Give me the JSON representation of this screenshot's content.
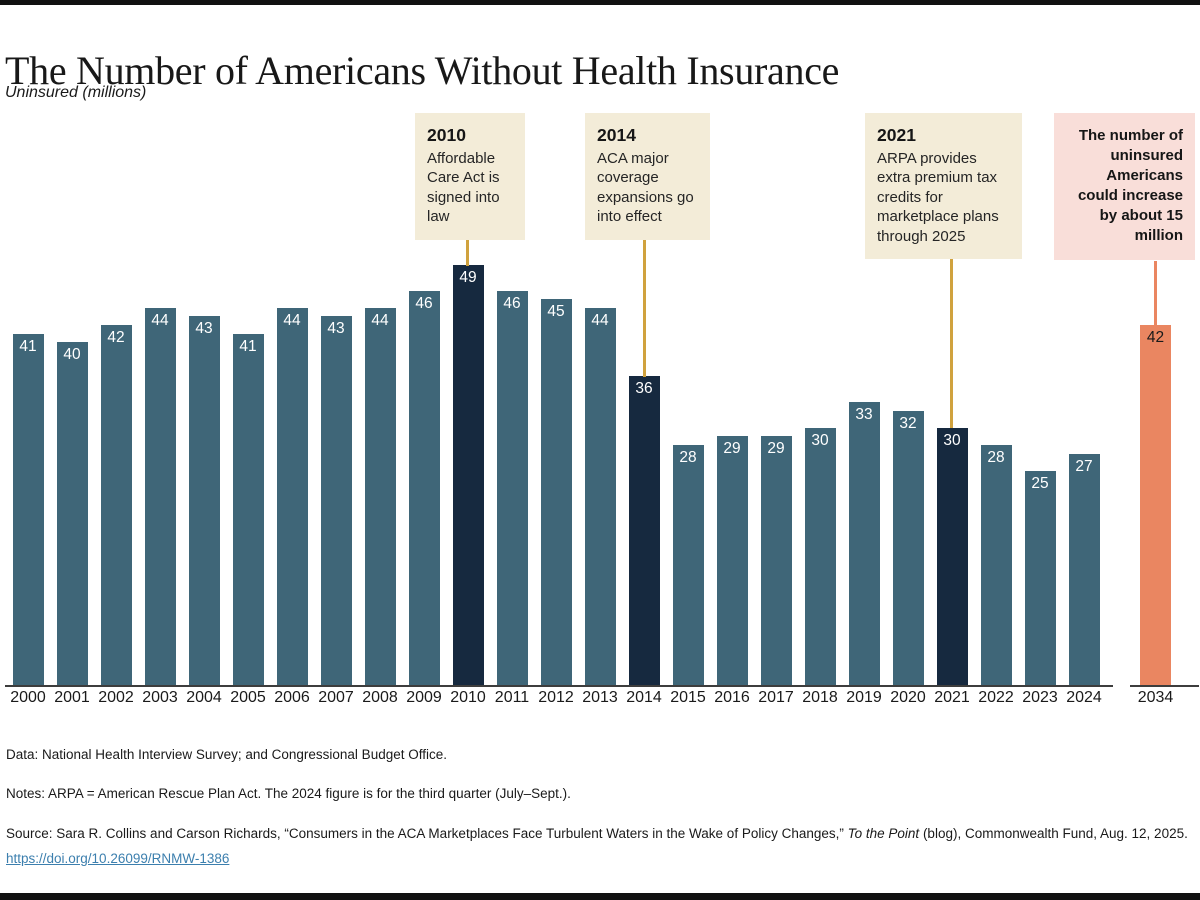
{
  "page": {
    "title": "The Number of Americans Without Health Insurance",
    "subtitle": "Uninsured (millions)"
  },
  "chart_data": {
    "type": "bar",
    "title": "The Number of Americans Without Health Insurance",
    "ylabel": "Uninsured (millions)",
    "categories": [
      "2000",
      "2001",
      "2002",
      "2003",
      "2004",
      "2005",
      "2006",
      "2007",
      "2008",
      "2009",
      "2010",
      "2011",
      "2012",
      "2013",
      "2014",
      "2015",
      "2016",
      "2017",
      "2018",
      "2019",
      "2020",
      "2021",
      "2022",
      "2023",
      "2024",
      "2034"
    ],
    "values": [
      41,
      40,
      42,
      44,
      43,
      41,
      44,
      43,
      44,
      46,
      49,
      46,
      45,
      44,
      36,
      28,
      29,
      29,
      30,
      33,
      32,
      30,
      28,
      25,
      27,
      42
    ],
    "highlighted_categories": [
      "2010",
      "2014",
      "2021"
    ],
    "projection_category": "2034",
    "ylim": [
      0,
      49
    ],
    "grid": false,
    "legend": false,
    "value_labels": true,
    "colors": {
      "bar": "#3f6678",
      "highlight": "#16293f",
      "projection": "#ea8661",
      "connector_gold": "#d0a23e",
      "connector_orange": "#ea8661",
      "annotation_cream": "#f3ecd8",
      "annotation_pink": "#f9ded9"
    }
  },
  "annotations": [
    {
      "year": "2010",
      "text": "Affordable Care Act is signed into law"
    },
    {
      "year": "2014",
      "text": "ACA major coverage expansions go into effect"
    },
    {
      "year": "2021",
      "text": "ARPA provides extra premium tax credits for marketplace plans through 2025"
    },
    {
      "text": "The number of uninsured Americans could increase by about 15 million"
    }
  ],
  "footer": {
    "data_line": "Data: National Health Interview Survey; and Congressional Budget Office.",
    "notes_line": "Notes: ARPA = American Rescue Plan Act. The 2024 figure is for the third quarter (July–Sept.).",
    "source_prefix": "Source: Sara R. Collins and Carson Richards, “Consumers in the ACA Marketplaces Face Turbulent Waters in the Wake of Policy Changes,” ",
    "source_italic": "To the Point",
    "source_suffix": " (blog), Commonwealth Fund, Aug. 12, 2025. ",
    "source_link": "https://doi.org/10.26099/RNMW-1386"
  }
}
